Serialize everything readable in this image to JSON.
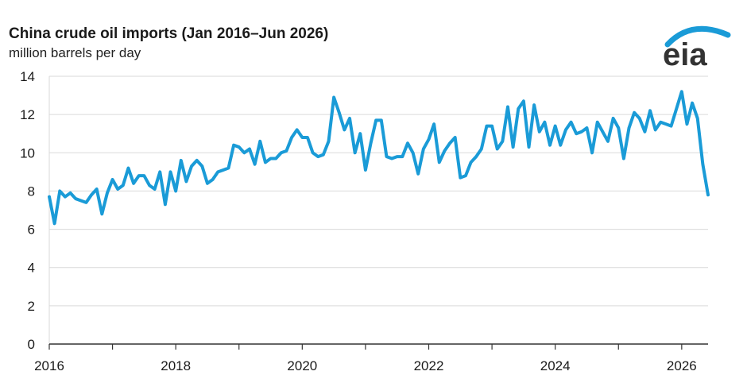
{
  "title": "China crude oil imports (Jan 2016–Jun 2026)",
  "subtitle": "million barrels per day",
  "logo": {
    "text": "eia",
    "icon": "eia-logo"
  },
  "colors": {
    "line": "#1a9bd7",
    "grid": "#d9d9d9",
    "axis": "#333333",
    "logo": "#333333",
    "logo_arc": "#1a9bd7"
  },
  "chart_data": {
    "type": "line",
    "title": "China crude oil imports (Jan 2016–Jun 2026)",
    "ylabel": "million barrels per day",
    "xlabel": "",
    "ylim": [
      0,
      14
    ],
    "xlim": [
      "2016-01",
      "2026-06"
    ],
    "yticks": [
      "0",
      "2",
      "4",
      "6",
      "8",
      "10",
      "12",
      "14"
    ],
    "xticks": [
      "2016",
      "2018",
      "2020",
      "2022",
      "2024",
      "2026"
    ],
    "grid": "horizontal",
    "series": [
      {
        "x": [
          "2016-01",
          "2016-02",
          "2016-03",
          "2016-04",
          "2016-05",
          "2016-06",
          "2016-07",
          "2016-08",
          "2016-09",
          "2016-10",
          "2016-11",
          "2016-12",
          "2017-01",
          "2017-02",
          "2017-03",
          "2017-04",
          "2017-05",
          "2017-06",
          "2017-07",
          "2017-08",
          "2017-09",
          "2017-10",
          "2017-11",
          "2017-12",
          "2018-01",
          "2018-02",
          "2018-03",
          "2018-04",
          "2018-05",
          "2018-06",
          "2018-07",
          "2018-08",
          "2018-09",
          "2018-10",
          "2018-11",
          "2018-12",
          "2019-01",
          "2019-02",
          "2019-03",
          "2019-04",
          "2019-05",
          "2019-06",
          "2019-07",
          "2019-08",
          "2019-09",
          "2019-10",
          "2019-11",
          "2019-12",
          "2020-01",
          "2020-02",
          "2020-03",
          "2020-04",
          "2020-05",
          "2020-06",
          "2020-07",
          "2020-08",
          "2020-09",
          "2020-10",
          "2020-11",
          "2020-12",
          "2021-01",
          "2021-02",
          "2021-03",
          "2021-04",
          "2021-05",
          "2021-06",
          "2021-07",
          "2021-08",
          "2021-09",
          "2021-10",
          "2021-11",
          "2021-12",
          "2022-01",
          "2022-02",
          "2022-03",
          "2022-04",
          "2022-05",
          "2022-06",
          "2022-07",
          "2022-08",
          "2022-09",
          "2022-10",
          "2022-11",
          "2022-12",
          "2023-01",
          "2023-02",
          "2023-03",
          "2023-04",
          "2023-05",
          "2023-06",
          "2023-07",
          "2023-08",
          "2023-09",
          "2023-10",
          "2023-11",
          "2023-12",
          "2024-01",
          "2024-02",
          "2024-03",
          "2024-04",
          "2024-05",
          "2024-06",
          "2024-07",
          "2024-08",
          "2024-09",
          "2024-10",
          "2024-11",
          "2024-12",
          "2025-01",
          "2025-02",
          "2025-03",
          "2025-04",
          "2025-05",
          "2025-06",
          "2025-07",
          "2025-08",
          "2025-09",
          "2025-10",
          "2025-11",
          "2025-12",
          "2026-01",
          "2026-02",
          "2026-03",
          "2026-04",
          "2026-05",
          "2026-06"
        ],
        "values": [
          7.7,
          6.3,
          8.0,
          7.7,
          7.9,
          7.6,
          7.5,
          7.4,
          7.8,
          8.1,
          6.8,
          7.9,
          8.6,
          8.1,
          8.3,
          9.2,
          8.4,
          8.8,
          8.8,
          8.3,
          8.1,
          9.0,
          7.3,
          9.0,
          8.0,
          9.6,
          8.5,
          9.3,
          9.6,
          9.3,
          8.4,
          8.6,
          9.0,
          9.1,
          9.2,
          10.4,
          10.3,
          10.0,
          10.2,
          9.4,
          10.6,
          9.5,
          9.7,
          9.7,
          10.0,
          10.1,
          10.8,
          11.2,
          10.8,
          10.8,
          10.0,
          9.8,
          9.9,
          10.6,
          12.9,
          12.1,
          11.2,
          11.8,
          10.0,
          11.0,
          9.1,
          10.5,
          11.7,
          11.7,
          9.8,
          9.7,
          9.8,
          9.8,
          10.5,
          10.0,
          8.9,
          10.2,
          10.7,
          11.5,
          9.5,
          10.1,
          10.5,
          10.8,
          8.7,
          8.8,
          9.5,
          9.8,
          10.2,
          11.4,
          11.4,
          10.2,
          10.6,
          12.4,
          10.3,
          12.3,
          12.7,
          10.3,
          12.5,
          11.1,
          11.6,
          10.4,
          11.4,
          10.4,
          11.2,
          11.6,
          11.0,
          11.1,
          11.3,
          10.0,
          11.6,
          11.1,
          10.6,
          11.8,
          11.3,
          9.7,
          11.3,
          12.1,
          11.8,
          11.1,
          12.2,
          11.2,
          11.6,
          11.5,
          11.4,
          12.3,
          13.2,
          11.5,
          12.6,
          11.8,
          9.4,
          7.8
        ]
      }
    ]
  }
}
